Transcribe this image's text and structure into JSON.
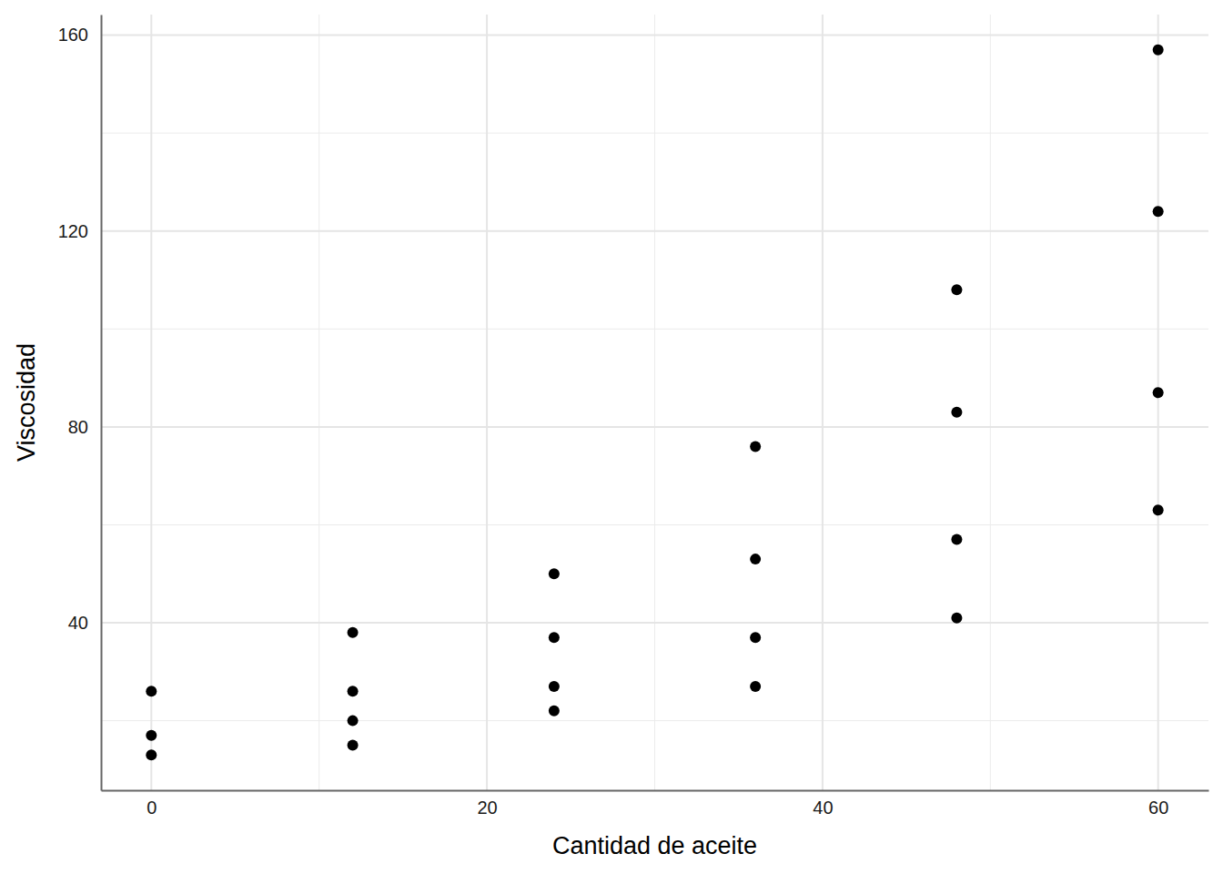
{
  "chart_data": {
    "type": "scatter",
    "x_label": "Cantidad de aceite",
    "y_label": "Viscosidad",
    "x": [
      0,
      0,
      0,
      12,
      12,
      12,
      12,
      24,
      24,
      24,
      24,
      36,
      36,
      36,
      36,
      48,
      48,
      48,
      48,
      60,
      60,
      60,
      60
    ],
    "values": [
      26,
      17,
      13,
      38,
      26,
      20,
      15,
      50,
      37,
      27,
      22,
      76,
      53,
      37,
      27,
      108,
      83,
      57,
      41,
      157,
      124,
      87,
      63
    ],
    "color": "#000000",
    "marker": "circle",
    "xlim": [
      -3,
      63
    ],
    "ylim": [
      5.8,
      164.2
    ],
    "xticks": [
      0,
      20,
      40,
      60
    ],
    "yticks": [
      40,
      80,
      120,
      160
    ],
    "grid": true
  }
}
